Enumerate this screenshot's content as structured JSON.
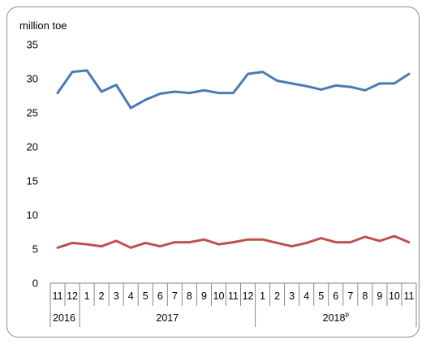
{
  "chart_data": {
    "type": "line",
    "ylabel": "million toe",
    "ylim": [
      0,
      35
    ],
    "yticks": [
      0,
      5,
      10,
      15,
      20,
      25,
      30,
      35
    ],
    "grid": false,
    "legend": "none",
    "categories": [
      "11",
      "12",
      "1",
      "2",
      "3",
      "4",
      "5",
      "6",
      "7",
      "8",
      "9",
      "10",
      "11",
      "12",
      "1",
      "2",
      "3",
      "4",
      "5",
      "6",
      "7",
      "8",
      "9",
      "10",
      "11"
    ],
    "year_groups": [
      {
        "label": "2016",
        "sup": "",
        "start": 0,
        "end": 1
      },
      {
        "label": "2017",
        "sup": "",
        "start": 2,
        "end": 13
      },
      {
        "label": "2018",
        "sup": "p",
        "start": 14,
        "end": 24
      }
    ],
    "series": [
      {
        "color": "#4a7ab4",
        "values": [
          27.9,
          31.0,
          31.2,
          28.1,
          29.1,
          25.7,
          26.9,
          27.8,
          28.1,
          27.9,
          28.3,
          27.9,
          27.9,
          30.7,
          31.0,
          29.7,
          29.3,
          28.9,
          28.4,
          29.0,
          28.8,
          28.3,
          29.3,
          29.3,
          30.7
        ]
      },
      {
        "color": "#c0504d",
        "values": [
          5.2,
          5.9,
          5.7,
          5.4,
          6.2,
          5.2,
          5.9,
          5.4,
          6.0,
          6.0,
          6.4,
          5.7,
          6.0,
          6.4,
          6.4,
          5.9,
          5.4,
          5.9,
          6.6,
          6.0,
          6.0,
          6.8,
          6.2,
          6.9,
          6.0
        ]
      }
    ]
  }
}
